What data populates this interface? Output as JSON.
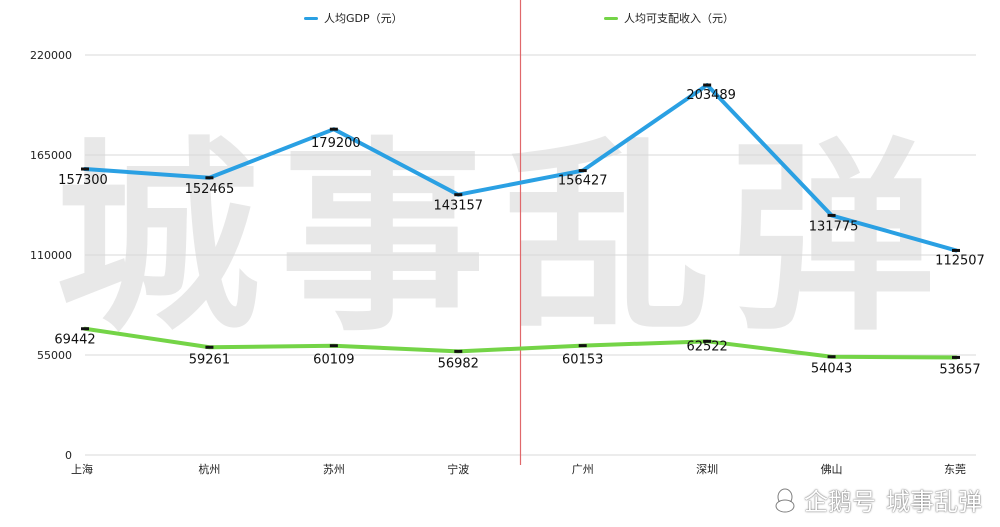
{
  "chart_data": {
    "type": "line",
    "categories": [
      "上海",
      "杭州",
      "苏州",
      "宁波",
      "广州",
      "深圳",
      "佛山",
      "东莞"
    ],
    "series": [
      {
        "name": "人均GDP（元）",
        "values": [
          157300,
          152465,
          179200,
          143157,
          156427,
          203489,
          131775,
          112507
        ],
        "color": "#2aa0e3"
      },
      {
        "name": "人均可支配收入（元）",
        "values": [
          69442,
          59261,
          60109,
          56982,
          60153,
          62522,
          54043,
          53657
        ],
        "color": "#74d447"
      }
    ],
    "yticks": [
      0,
      55000,
      110000,
      165000,
      220000
    ],
    "ylim": [
      0,
      220000
    ],
    "grid": true,
    "legend_position": "top",
    "divider_color": "#e0686b"
  },
  "watermark": {
    "text": "城事乱弹",
    "footer_brand": "企鹅号",
    "footer_name": "城事乱弹"
  }
}
